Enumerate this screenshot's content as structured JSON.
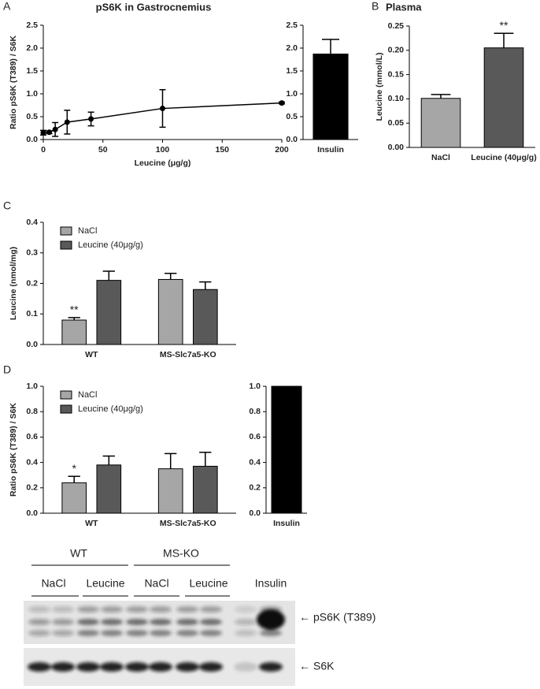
{
  "chart_data": [
    {
      "type": "line",
      "label": "A",
      "title": "pS6K in Gastrocnemius",
      "xlabel": "Leucine (μg/g)",
      "ylabel": "Ratio pS6K (T389) / S6K",
      "x": [
        0,
        5,
        10,
        20,
        40,
        100,
        200
      ],
      "values": [
        0.15,
        0.16,
        0.22,
        0.38,
        0.45,
        0.68,
        0.8
      ],
      "errors": [
        0.05,
        0.03,
        0.15,
        0.26,
        0.15,
        0.41,
        0.02
      ],
      "color": "#000000",
      "xlim": [
        0,
        200
      ],
      "xticks": [
        0,
        50,
        100,
        150,
        200
      ],
      "ylim": [
        0,
        2.5
      ],
      "yticks": [
        {
          "value": 0,
          "label": "0.0"
        },
        0.5,
        {
          "value": 1,
          "label": "1.0"
        },
        1.5,
        {
          "value": 2,
          "label": "2.0"
        },
        2.5
      ]
    },
    {
      "type": "bar",
      "categories": [
        "Insulin"
      ],
      "values": [
        1.87
      ],
      "errors": [
        0.32
      ],
      "colors": [
        "#000000"
      ],
      "ylim": [
        0,
        2.5
      ],
      "yticks": [
        {
          "value": 0,
          "label": "0.0"
        },
        0.5,
        {
          "value": 1,
          "label": "1.0"
        },
        1.5,
        {
          "value": 2,
          "label": "2.0"
        },
        2.5
      ]
    },
    {
      "type": "bar",
      "label": "B",
      "title": "Plasma",
      "ylabel": "Leucine (mmol/L)",
      "categories": [
        "NaCl",
        "Leucine (40μg/g)"
      ],
      "values": [
        0.101,
        0.205
      ],
      "errors": [
        0.008,
        0.03
      ],
      "colors": [
        "#a6a6a6",
        "#595959"
      ],
      "annotations": [
        null,
        "**"
      ],
      "ylim": [
        0,
        0.25
      ],
      "yticks": [
        {
          "value": 0,
          "label": "0.00"
        },
        {
          "value": 0.05,
          "label": "0.05"
        },
        {
          "value": 0.1,
          "label": "0.10"
        },
        {
          "value": 0.15,
          "label": "0.15"
        },
        {
          "value": 0.2,
          "label": "0.20"
        },
        {
          "value": 0.25,
          "label": "0.25"
        }
      ]
    },
    {
      "type": "bar",
      "label": "C",
      "ylabel": "Leucine (nmol/mg)",
      "categories": [
        "WT",
        "MS-Slc7a5-KO"
      ],
      "legend": "upper left",
      "series": [
        {
          "name": "NaCl",
          "color": "#a6a6a6",
          "values": [
            0.08,
            0.213
          ],
          "errors": [
            0.008,
            0.02
          ],
          "annotations": [
            "**",
            null
          ]
        },
        {
          "name": "Leucine (40μg/g)",
          "color": "#595959",
          "values": [
            0.21,
            0.18
          ],
          "errors": [
            0.03,
            0.025
          ],
          "annotations": [
            null,
            null
          ]
        }
      ],
      "ylim": [
        0,
        0.4
      ],
      "yticks": [
        {
          "value": 0,
          "label": "0.0"
        },
        0.1,
        0.2,
        0.3,
        0.4
      ]
    },
    {
      "type": "bar",
      "label": "D",
      "ylabel": "Ratio pS6K (T389) / S6K",
      "categories": [
        "WT",
        "MS-Slc7a5-KO"
      ],
      "legend": "upper left",
      "series": [
        {
          "name": "NaCl",
          "color": "#a6a6a6",
          "values": [
            0.24,
            0.35
          ],
          "errors": [
            0.05,
            0.12
          ],
          "annotations": [
            "*",
            null
          ]
        },
        {
          "name": "Leucine (40μg/g)",
          "color": "#595959",
          "values": [
            0.38,
            0.37
          ],
          "errors": [
            0.07,
            0.11
          ],
          "annotations": [
            null,
            null
          ]
        }
      ],
      "ylim": [
        0,
        1
      ],
      "yticks": [
        {
          "value": 0,
          "label": "0.0"
        },
        0.2,
        0.4,
        0.6,
        0.8,
        {
          "value": 1,
          "label": "1.0"
        }
      ]
    },
    {
      "type": "bar",
      "categories": [
        "Insulin"
      ],
      "values": [
        1
      ],
      "colors": [
        "#000000"
      ],
      "ylim": [
        0,
        1
      ],
      "yticks": [
        {
          "value": 0,
          "label": "0.0"
        },
        0.2,
        0.4,
        0.6,
        0.8,
        {
          "value": 1,
          "label": "1.0"
        }
      ]
    }
  ],
  "blot": {
    "groups": [
      "WT",
      "MS-KO"
    ],
    "lanes": [
      "NaCl",
      "Leucine",
      "NaCl",
      "Leucine",
      "Insulin"
    ],
    "bands": [
      "pS6K (T389)",
      "S6K"
    ]
  }
}
